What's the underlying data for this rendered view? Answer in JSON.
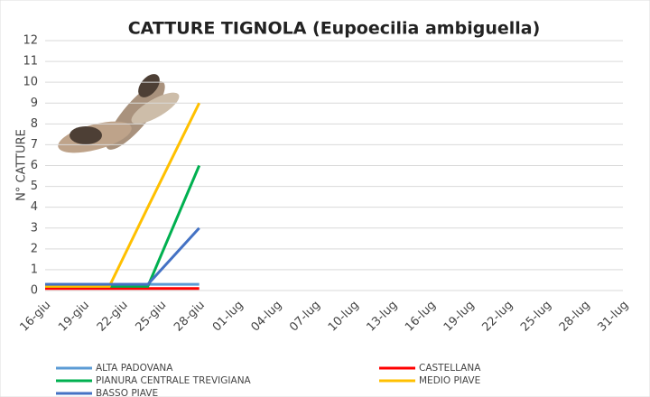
{
  "chart_data": {
    "type": "line",
    "title": "CATTURE TIGNOLA (Eupoecilia ambiguella)",
    "y_label": "N° CATTURE",
    "xticks": [
      "16-giu",
      "19-giu",
      "22-giu",
      "25-giu",
      "28-giu",
      "01-lug",
      "04-lug",
      "07-lug",
      "10-lug",
      "13-lug",
      "16-lug",
      "19-lug",
      "22-lug",
      "25-lug",
      "28-lug",
      "31-lug"
    ],
    "x": [
      "16-giu",
      "21-giu",
      "24-giu",
      "28-giu"
    ],
    "series": [
      {
        "name": "ALTA PADOVANA",
        "color": "#5b9bd5",
        "values": [
          0.3,
          0.3,
          0.3,
          0.3
        ]
      },
      {
        "name": "CASTELLANA",
        "color": "#ff0000",
        "values": [
          0.1,
          0.1,
          0.1,
          0.1
        ]
      },
      {
        "name": "PIANURA CENTRALE TREVIGIANA",
        "color": "#00b050",
        "values": [
          0.2,
          0.2,
          0.2,
          6
        ]
      },
      {
        "name": "MEDIO PIAVE",
        "color": "#ffc000",
        "values": [
          0.2,
          0.2,
          4,
          9
        ]
      },
      {
        "name": "BASSO PIAVE",
        "color": "#4472c4",
        "values": [
          0.3,
          0.3,
          0.3,
          3
        ]
      }
    ],
    "ylim": [
      0,
      12
    ],
    "yticks": [
      0,
      1,
      2,
      3,
      4,
      5,
      6,
      7,
      8,
      9,
      10,
      11,
      12
    ],
    "grid": true
  }
}
